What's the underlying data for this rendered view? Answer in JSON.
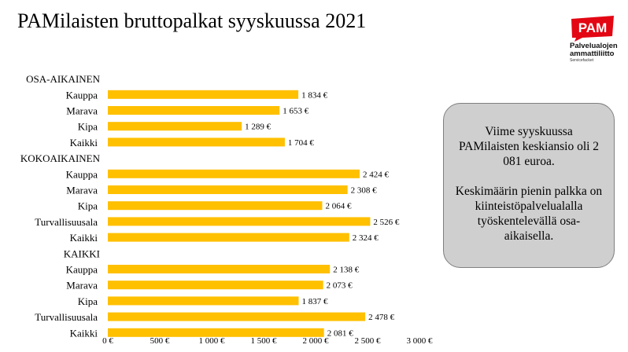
{
  "title": "PAMilaisten bruttopalkat syyskuussa 2021",
  "logo": {
    "text": "PAM",
    "line1": "Palvelualojen",
    "line2": "ammattiliitto",
    "line3": "Servicefacket",
    "color": "#e30613"
  },
  "infobox": {
    "p1": "Viime syyskuussa PAMilaisten keskiansio oli 2 081 euroa.",
    "p2": "Keskimäärin pienin palkka on kiinteistöpalvelualalla työskentelevällä osa-aikaisella."
  },
  "chart_data": {
    "type": "bar",
    "orientation": "horizontal",
    "bar_color": "#ffc000",
    "xlim": [
      0,
      3000
    ],
    "x_ticks": [
      "0 €",
      "500 €",
      "1 000 €",
      "1 500 €",
      "2 000 €",
      "2 500 €",
      "3 000 €"
    ],
    "groups": [
      {
        "name": "OSA-AIKAINEN",
        "categories": [
          "Kauppa",
          "Marava",
          "Kipa",
          "Kaikki"
        ],
        "values": [
          1834,
          1653,
          1289,
          1704
        ],
        "labels": [
          "1 834 €",
          "1 653 €",
          "1 289 €",
          "1 704 €"
        ]
      },
      {
        "name": "KOKOAIKAINEN",
        "categories": [
          "Kauppa",
          "Marava",
          "Kipa",
          "Turvallisuusala",
          "Kaikki"
        ],
        "values": [
          2424,
          2308,
          2064,
          2526,
          2324
        ],
        "labels": [
          "2 424 €",
          "2 308 €",
          "2 064 €",
          "2 526 €",
          "2 324 €"
        ]
      },
      {
        "name": "KAIKKI",
        "categories": [
          "Kauppa",
          "Marava",
          "Kipa",
          "Turvallisuusala",
          "Kaikki"
        ],
        "values": [
          2138,
          2073,
          1837,
          2478,
          2081
        ],
        "labels": [
          "2 138 €",
          "2 073 €",
          "1 837 €",
          "2 478 €",
          "2 081 €"
        ]
      }
    ]
  }
}
